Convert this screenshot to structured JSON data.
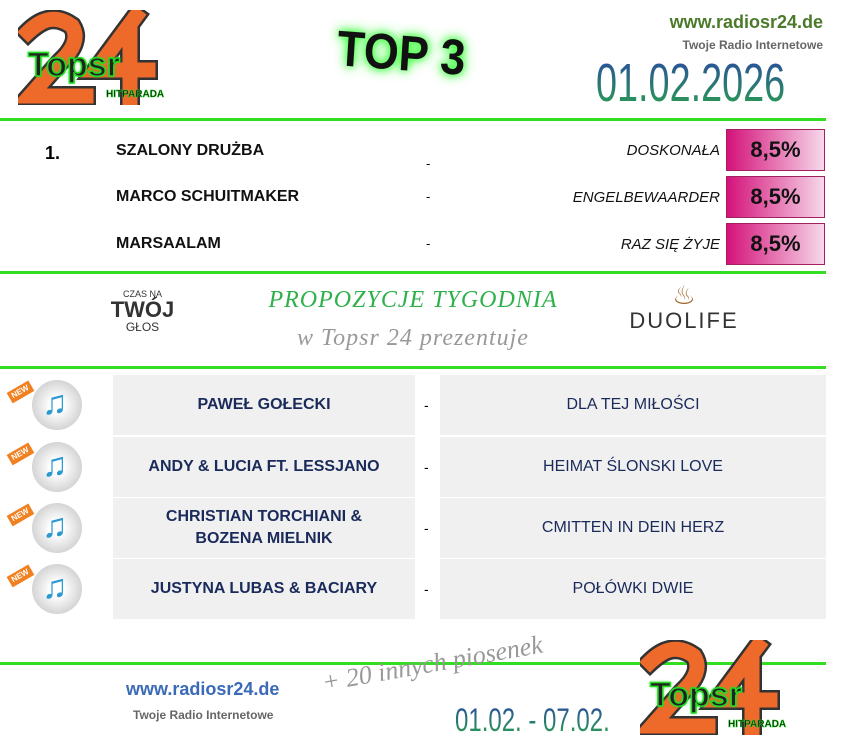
{
  "header": {
    "logo_text": "24 Topsr HITPARADA",
    "title": "TOP 3",
    "site": "www.radiosr24.de",
    "tagline": "Twoje Radio Internetowe",
    "date": "01.02.2026"
  },
  "top3": {
    "rank": "1.",
    "rows": [
      {
        "artist": "SZALONY DRUŻBA",
        "dash": "-",
        "title": "DOSKONAŁA",
        "percent": "8,5%"
      },
      {
        "artist": "MARCO SCHUITMAKER",
        "dash": "-",
        "title": "ENGELBEWAARDER",
        "percent": "8,5%"
      },
      {
        "artist": "MARSAALAM",
        "dash": "-",
        "title": "RAZ SIĘ ŻYJE",
        "percent": "8,5%"
      }
    ]
  },
  "proposals": {
    "heading": "PROPOZYCJE TYGODNIA",
    "subheading": "w Topsr 24 prezentuje",
    "logo_left": "CZAS NA TWÓJ GŁOS",
    "logo_right": "DUOLIFE",
    "songs": [
      {
        "artist": "PAWEŁ GOŁECKI",
        "dash": "-",
        "title": "DLA TEJ MIŁOŚCI",
        "badge": "NEW"
      },
      {
        "artist": "ANDY & LUCIA FT. LESSJANO",
        "dash": "-",
        "title": "HEIMAT ŚLONSKI LOVE",
        "badge": "NEW"
      },
      {
        "artist": "CHRISTIAN TORCHIANI & BOZENA MIELNIK",
        "dash": "-",
        "title": "CMITTEN IN DEIN HERZ",
        "badge": "NEW"
      },
      {
        "artist": "JUSTYNA LUBAS & BACIARY",
        "dash": "-",
        "title": "POŁÓWKI DWIE",
        "badge": "NEW"
      }
    ]
  },
  "footer": {
    "site": "www.radiosr24.de",
    "tagline": "Twoje Radio Internetowe",
    "more": "+ 20 innych piosenek",
    "range": "01.02. - 07.02."
  },
  "colors": {
    "line": "#33dd22",
    "pink": "#d4127a",
    "navy": "#1a2a5a"
  }
}
